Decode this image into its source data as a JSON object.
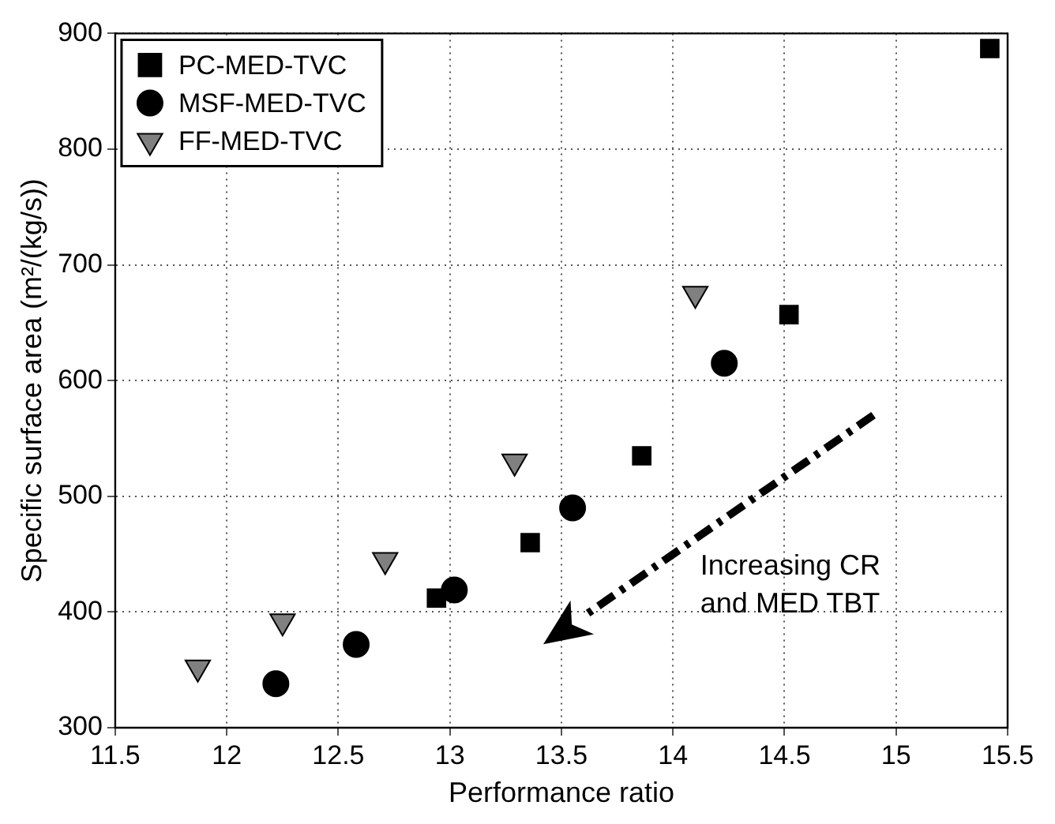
{
  "chart_data": {
    "type": "scatter",
    "xlabel": "Performance ratio",
    "ylabel": "Specific surface area (m²/(kg/s))",
    "xlim": [
      11.5,
      15.5
    ],
    "xticks": [
      11.5,
      12,
      12.5,
      13,
      13.5,
      14,
      14.5,
      15,
      15.5
    ],
    "ylim": [
      300,
      900
    ],
    "yticks": [
      300,
      400,
      500,
      600,
      700,
      800,
      900
    ],
    "grid": true,
    "legend": "top left",
    "series": [
      {
        "name": "PC-MED-TVC",
        "color": "#000000",
        "marker": "square",
        "x": [
          12.94,
          13.36,
          13.86,
          14.52,
          15.42
        ],
        "values": [
          412,
          460,
          535,
          657,
          887
        ]
      },
      {
        "name": "MSF-MED-TVC",
        "color": "#000000",
        "marker": "circle",
        "x": [
          12.22,
          12.58,
          13.02,
          13.55,
          14.23
        ],
        "values": [
          338,
          372,
          419,
          490,
          615
        ]
      },
      {
        "name": "FF-MED-TVC",
        "color": "#808080",
        "marker": "triangle",
        "x": [
          11.87,
          12.25,
          12.71,
          13.29,
          14.1
        ],
        "values": [
          352,
          392,
          445,
          530,
          675
        ]
      }
    ],
    "annotations": [
      "Increasing CR\nand MED TBT"
    ]
  }
}
